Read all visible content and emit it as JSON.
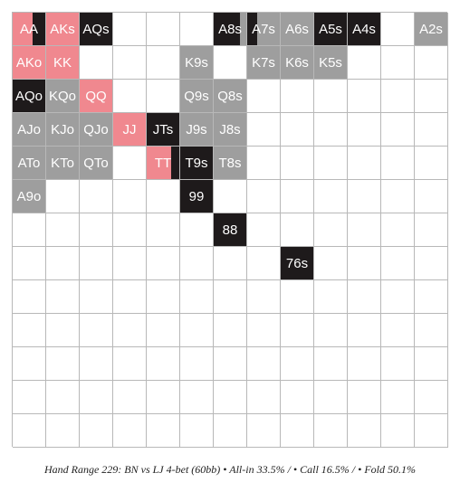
{
  "caption": "Hand Range 229: BN vs LJ 4-bet (60bb) • All-in 33.5% / • Call 16.5% / • Fold 50.1%",
  "colors": {
    "allin": "#1e1a1b",
    "call": "#f0888f",
    "fold": "#9e9e9e",
    "empty": "#ffffff",
    "text": "#ffffff",
    "grid": "#b8b8b8"
  },
  "chart_data": {
    "type": "heatmap",
    "title": "Hand Range 229: BN vs LJ 4-bet (60bb)",
    "ranks": [
      "A",
      "K",
      "Q",
      "J",
      "T",
      "9",
      "8",
      "7",
      "6",
      "5",
      "4",
      "3",
      "2"
    ],
    "legend": [
      {
        "action": "All-in",
        "percent": 33.5
      },
      {
        "action": "Call",
        "percent": 16.5
      },
      {
        "action": "Fold",
        "percent": 50.1
      }
    ],
    "hands": [
      {
        "hand": "AA",
        "row": 0,
        "col": 0,
        "call": 0.6,
        "allin": 0.4,
        "fold": 0
      },
      {
        "hand": "AKs",
        "row": 0,
        "col": 1,
        "call": 1,
        "allin": 0,
        "fold": 0
      },
      {
        "hand": "AQs",
        "row": 0,
        "col": 2,
        "call": 0,
        "allin": 1,
        "fold": 0
      },
      {
        "hand": "A8s",
        "row": 0,
        "col": 6,
        "call": 0,
        "allin": 0.8,
        "fold": 0.2
      },
      {
        "hand": "A7s",
        "row": 0,
        "col": 7,
        "call": 0,
        "allin": 0.3,
        "fold": 0.7
      },
      {
        "hand": "A6s",
        "row": 0,
        "col": 8,
        "call": 0,
        "allin": 0,
        "fold": 1
      },
      {
        "hand": "A5s",
        "row": 0,
        "col": 9,
        "call": 0,
        "allin": 1,
        "fold": 0
      },
      {
        "hand": "A4s",
        "row": 0,
        "col": 10,
        "call": 0,
        "allin": 1,
        "fold": 0
      },
      {
        "hand": "A2s",
        "row": 0,
        "col": 12,
        "call": 0,
        "allin": 0,
        "fold": 1
      },
      {
        "hand": "AKo",
        "row": 1,
        "col": 0,
        "call": 1,
        "allin": 0,
        "fold": 0
      },
      {
        "hand": "KK",
        "row": 1,
        "col": 1,
        "call": 1,
        "allin": 0,
        "fold": 0
      },
      {
        "hand": "K9s",
        "row": 1,
        "col": 5,
        "call": 0,
        "allin": 0,
        "fold": 1
      },
      {
        "hand": "K7s",
        "row": 1,
        "col": 7,
        "call": 0,
        "allin": 0,
        "fold": 1
      },
      {
        "hand": "K6s",
        "row": 1,
        "col": 8,
        "call": 0,
        "allin": 0,
        "fold": 1
      },
      {
        "hand": "K5s",
        "row": 1,
        "col": 9,
        "call": 0,
        "allin": 0,
        "fold": 1
      },
      {
        "hand": "AQo",
        "row": 2,
        "col": 0,
        "call": 0,
        "allin": 1,
        "fold": 0
      },
      {
        "hand": "KQo",
        "row": 2,
        "col": 1,
        "call": 0,
        "allin": 0,
        "fold": 1
      },
      {
        "hand": "QQ",
        "row": 2,
        "col": 2,
        "call": 1,
        "allin": 0,
        "fold": 0
      },
      {
        "hand": "Q9s",
        "row": 2,
        "col": 5,
        "call": 0,
        "allin": 0,
        "fold": 1
      },
      {
        "hand": "Q8s",
        "row": 2,
        "col": 6,
        "call": 0,
        "allin": 0,
        "fold": 1
      },
      {
        "hand": "AJo",
        "row": 3,
        "col": 0,
        "call": 0,
        "allin": 0,
        "fold": 1
      },
      {
        "hand": "KJo",
        "row": 3,
        "col": 1,
        "call": 0,
        "allin": 0,
        "fold": 1
      },
      {
        "hand": "QJo",
        "row": 3,
        "col": 2,
        "call": 0,
        "allin": 0,
        "fold": 1
      },
      {
        "hand": "JJ",
        "row": 3,
        "col": 3,
        "call": 1,
        "allin": 0,
        "fold": 0
      },
      {
        "hand": "JTs",
        "row": 3,
        "col": 4,
        "call": 0,
        "allin": 1,
        "fold": 0
      },
      {
        "hand": "J9s",
        "row": 3,
        "col": 5,
        "call": 0,
        "allin": 0,
        "fold": 1
      },
      {
        "hand": "J8s",
        "row": 3,
        "col": 6,
        "call": 0,
        "allin": 0,
        "fold": 1
      },
      {
        "hand": "ATo",
        "row": 4,
        "col": 0,
        "call": 0,
        "allin": 0,
        "fold": 1
      },
      {
        "hand": "KTo",
        "row": 4,
        "col": 1,
        "call": 0,
        "allin": 0,
        "fold": 1
      },
      {
        "hand": "QTo",
        "row": 4,
        "col": 2,
        "call": 0,
        "allin": 0,
        "fold": 1
      },
      {
        "hand": "TT",
        "row": 4,
        "col": 4,
        "call": 0.75,
        "allin": 0.25,
        "fold": 0
      },
      {
        "hand": "T9s",
        "row": 4,
        "col": 5,
        "call": 0,
        "allin": 1,
        "fold": 0
      },
      {
        "hand": "T8s",
        "row": 4,
        "col": 6,
        "call": 0,
        "allin": 0,
        "fold": 1
      },
      {
        "hand": "A9o",
        "row": 5,
        "col": 0,
        "call": 0,
        "allin": 0,
        "fold": 1
      },
      {
        "hand": "99",
        "row": 5,
        "col": 5,
        "call": 0,
        "allin": 1,
        "fold": 0
      },
      {
        "hand": "88",
        "row": 6,
        "col": 6,
        "call": 0,
        "allin": 1,
        "fold": 0
      },
      {
        "hand": "76s",
        "row": 7,
        "col": 8,
        "call": 0,
        "allin": 1,
        "fold": 0
      }
    ]
  }
}
